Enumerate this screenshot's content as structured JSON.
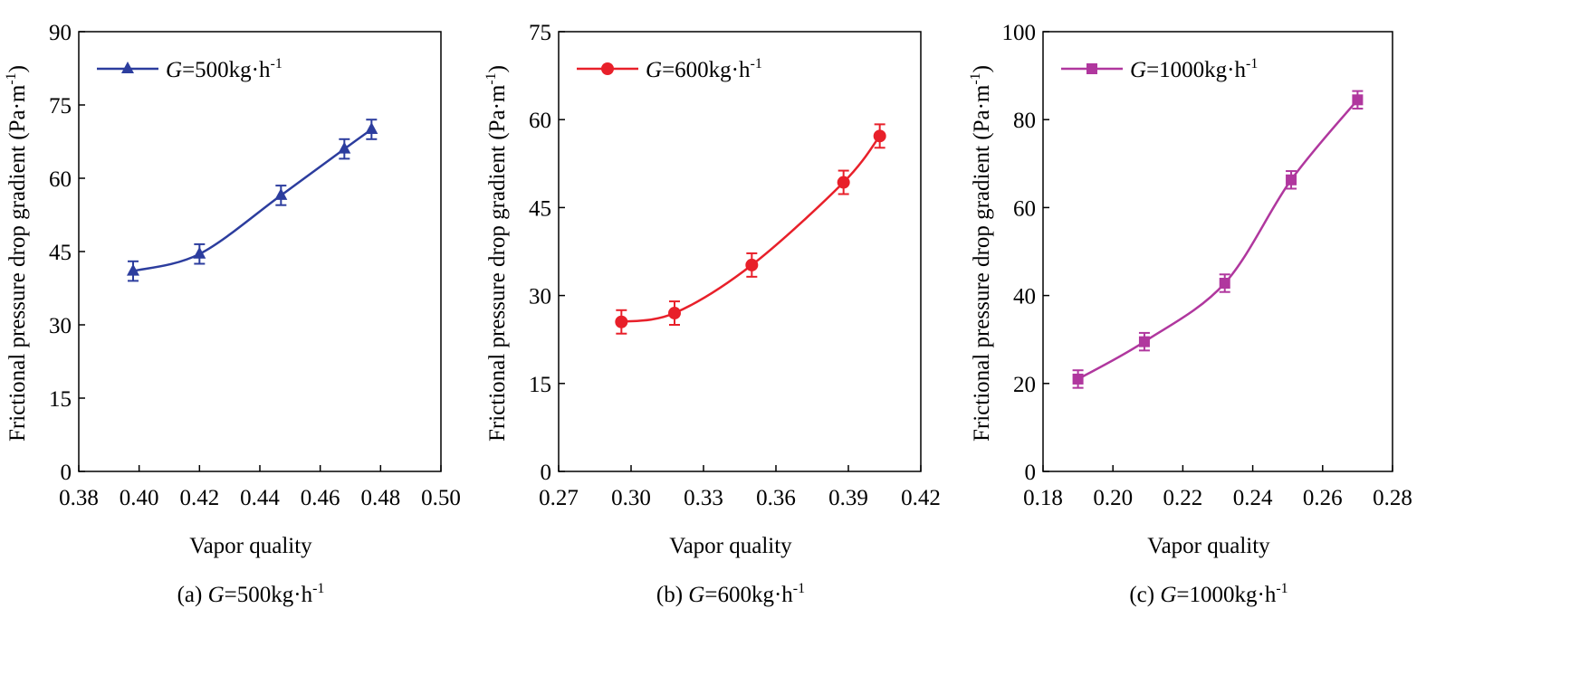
{
  "chart_data": [
    {
      "type": "line",
      "panel_caption": "(a) G=500kg·h⁻¹",
      "caption_prefix": "(a) ",
      "caption_var": "G",
      "caption_rest": "=500kg·h",
      "caption_exp": "-1",
      "xlabel": "Vapor quality",
      "ylabel": "Frictional pressure drop gradient (Pa·m⁻¹)",
      "ylabel_main": "Frictional pressure drop gradient (Pa·m",
      "ylabel_exp": "-1",
      "ylabel_close": ")",
      "xlim": [
        0.38,
        0.5
      ],
      "ylim": [
        0,
        90
      ],
      "xticks": [
        "0.38",
        "0.40",
        "0.42",
        "0.44",
        "0.46",
        "0.48",
        "0.50"
      ],
      "yticks": [
        "0",
        "15",
        "30",
        "45",
        "60",
        "75",
        "90"
      ],
      "color": "#2c3d9e",
      "marker": "triangle",
      "legend_position": "top-left",
      "series": [
        {
          "name": "G=500kg·h⁻¹",
          "legend_var": "G",
          "legend_rest": "=500kg·h",
          "legend_exp": "-1",
          "x": [
            0.398,
            0.42,
            0.447,
            0.468,
            0.477
          ],
          "y": [
            41.0,
            44.5,
            56.5,
            66.0,
            70.0
          ],
          "error": [
            2.0,
            2.0,
            2.0,
            2.0,
            2.0
          ]
        }
      ]
    },
    {
      "type": "line",
      "panel_caption": "(b) G=600kg·h⁻¹",
      "caption_prefix": "(b) ",
      "caption_var": "G",
      "caption_rest": "=600kg·h",
      "caption_exp": "-1",
      "xlabel": "Vapor quality",
      "ylabel": "Frictional pressure drop gradient (Pa·m⁻¹)",
      "ylabel_main": "Frictional pressure drop gradient (Pa·m",
      "ylabel_exp": "-1",
      "ylabel_close": ")",
      "xlim": [
        0.27,
        0.42
      ],
      "ylim": [
        0,
        75
      ],
      "xticks": [
        "0.27",
        "0.30",
        "0.33",
        "0.36",
        "0.39",
        "0.42"
      ],
      "yticks": [
        "0",
        "15",
        "30",
        "45",
        "60",
        "75"
      ],
      "color": "#e8202a",
      "marker": "circle",
      "legend_position": "top-left",
      "series": [
        {
          "name": "G=600kg·h⁻¹",
          "legend_var": "G",
          "legend_rest": "=600kg·h",
          "legend_exp": "-1",
          "x": [
            0.296,
            0.318,
            0.35,
            0.388,
            0.403
          ],
          "y": [
            25.5,
            27.0,
            35.2,
            49.3,
            57.2
          ],
          "error": [
            2.0,
            2.0,
            2.0,
            2.0,
            2.0
          ]
        }
      ]
    },
    {
      "type": "line",
      "panel_caption": "(c) G=1000kg·h⁻¹",
      "caption_prefix": "(c) ",
      "caption_var": "G",
      "caption_rest": "=1000kg·h",
      "caption_exp": "-1",
      "xlabel": "Vapor quality",
      "ylabel": "Frictional pressure drop gradient (Pa·m⁻¹)",
      "ylabel_main": "Frictional pressure drop gradient (Pa·m",
      "ylabel_exp": "-1",
      "ylabel_close": ")",
      "xlim": [
        0.18,
        0.28
      ],
      "ylim": [
        0,
        100
      ],
      "xticks": [
        "0.18",
        "0.20",
        "0.22",
        "0.24",
        "0.26",
        "0.28"
      ],
      "yticks": [
        "0",
        "20",
        "40",
        "60",
        "80",
        "100"
      ],
      "color": "#b0379e",
      "marker": "square",
      "legend_position": "top-left",
      "series": [
        {
          "name": "G=1000kg·h⁻¹",
          "legend_var": "G",
          "legend_rest": "=1000kg·h",
          "legend_exp": "-1",
          "x": [
            0.19,
            0.209,
            0.232,
            0.251,
            0.27
          ],
          "y": [
            21.0,
            29.5,
            42.8,
            66.3,
            84.5
          ],
          "error": [
            2.0,
            2.0,
            2.0,
            2.0,
            2.0
          ]
        }
      ]
    }
  ]
}
